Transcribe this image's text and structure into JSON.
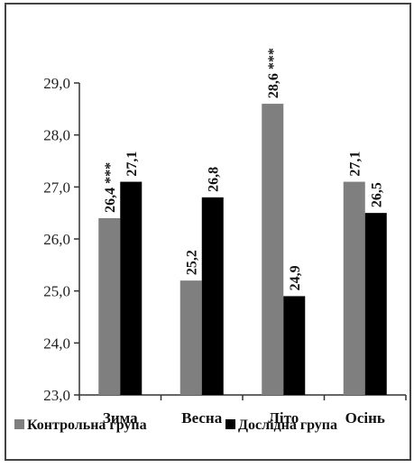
{
  "chart_data": {
    "type": "bar",
    "categories": [
      "Зима",
      "Весна",
      "Літо",
      "Осінь"
    ],
    "series": [
      {
        "name": "Контрольна група",
        "values": [
          26.4,
          25.2,
          28.6,
          27.1
        ],
        "labels": [
          "26,4 ***",
          "25,2",
          "28,6 ***",
          "27,1"
        ],
        "color": "#7f7f7f"
      },
      {
        "name": "Дослідна група",
        "values": [
          27.1,
          26.8,
          24.9,
          26.5
        ],
        "labels": [
          "27,1",
          "26,8",
          "24,9",
          "26,5"
        ],
        "color": "#000000"
      }
    ],
    "yticks": [
      "23,0",
      "24,0",
      "25,0",
      "26,0",
      "27,0",
      "28,0",
      "29,0"
    ],
    "ylim": [
      23,
      29
    ],
    "legend_position": "bottom",
    "grid": false
  }
}
